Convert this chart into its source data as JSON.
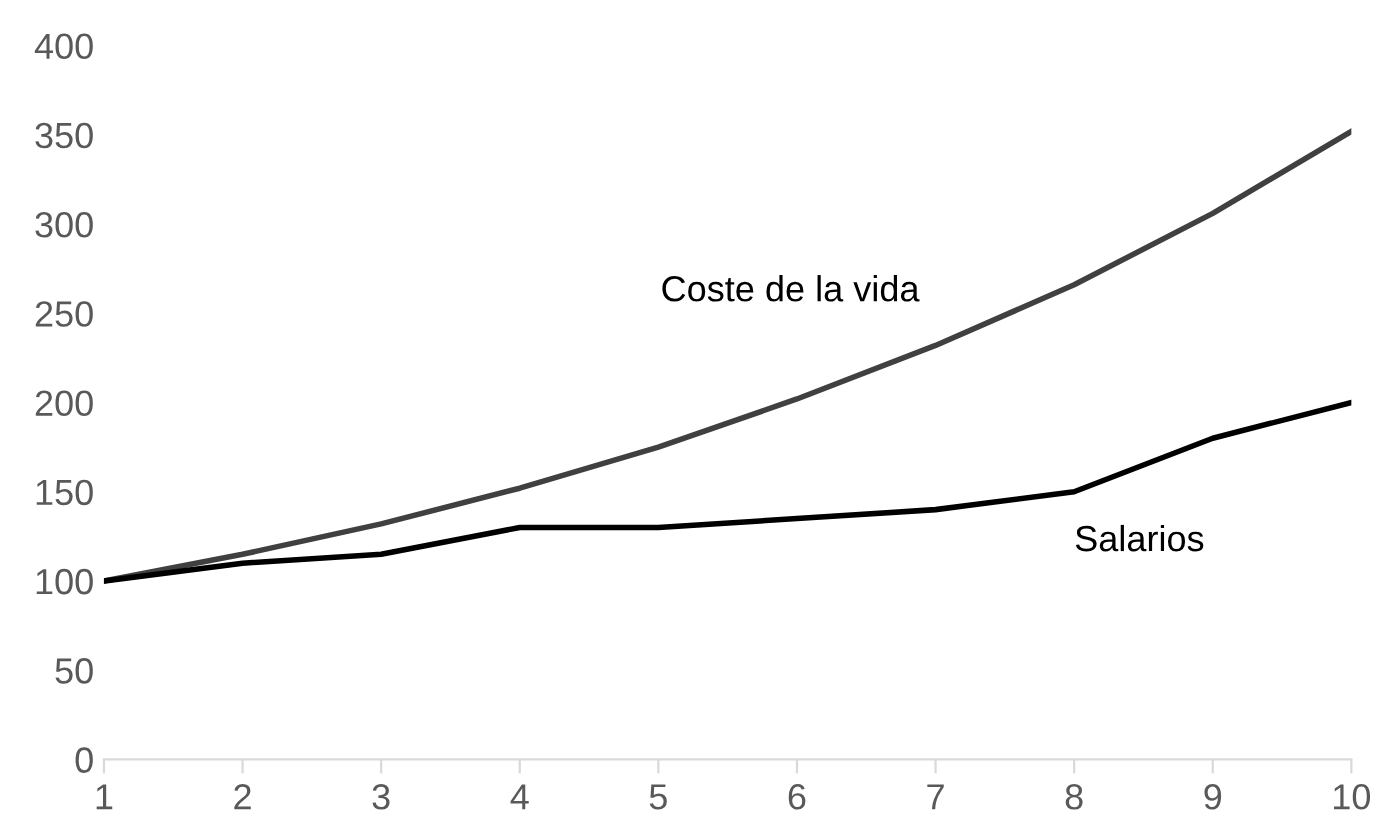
{
  "chart_data": {
    "type": "line",
    "x": [
      1,
      2,
      3,
      4,
      5,
      6,
      7,
      8,
      9,
      10
    ],
    "series": [
      {
        "name": "Coste de la vida",
        "color": "#404040",
        "values": [
          100,
          115,
          132,
          152,
          175,
          202,
          232,
          266,
          306,
          352
        ]
      },
      {
        "name": "Salarios",
        "color": "#000000",
        "values": [
          100,
          110,
          115,
          130,
          130,
          135,
          140,
          150,
          180,
          200
        ]
      }
    ],
    "xlim": [
      1,
      10
    ],
    "xticks": [
      1,
      2,
      3,
      4,
      5,
      6,
      7,
      8,
      9,
      10
    ],
    "ylim": [
      0,
      400
    ],
    "yticks": [
      0,
      50,
      100,
      150,
      200,
      250,
      300,
      350,
      400
    ],
    "grid": false,
    "legend": false,
    "marker": "none",
    "line_style": "solid"
  }
}
